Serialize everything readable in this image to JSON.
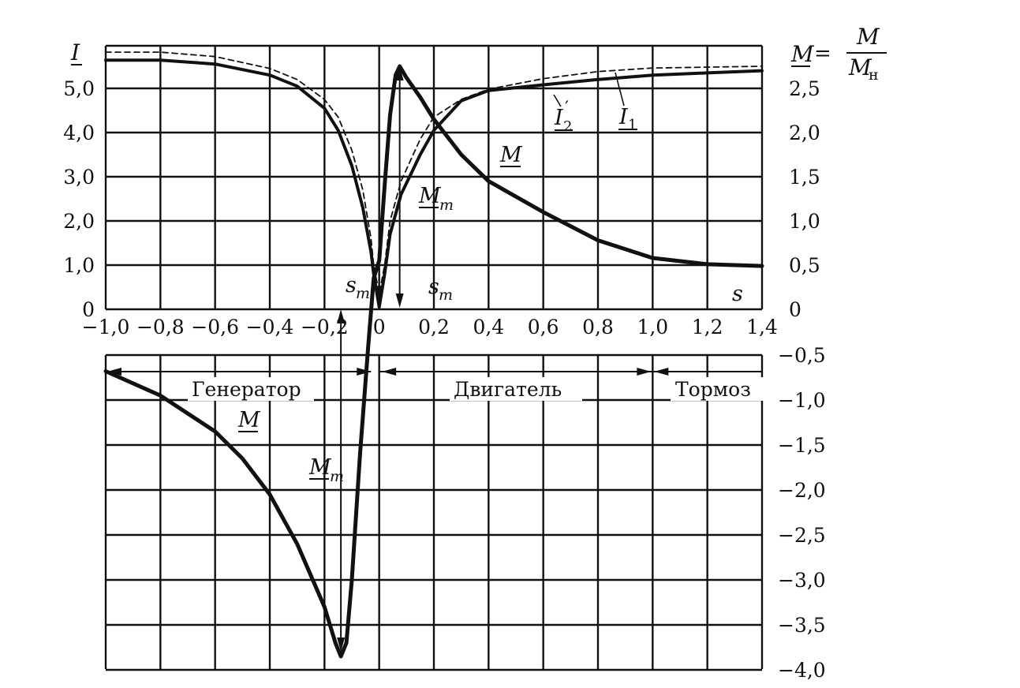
{
  "chart_data": {
    "type": "line",
    "x_axis": {
      "symbol": "s",
      "range": [
        -1.0,
        1.4
      ],
      "ticks": [
        {
          "value": -1.0,
          "label": "−1,0"
        },
        {
          "value": -0.8,
          "label": "−0,8"
        },
        {
          "value": -0.6,
          "label": "−0,6"
        },
        {
          "value": -0.4,
          "label": "−0,4"
        },
        {
          "value": -0.2,
          "label": "−0,2"
        },
        {
          "value": 0.0,
          "label": "0"
        },
        {
          "value": 0.2,
          "label": "0,2"
        },
        {
          "value": 0.4,
          "label": "0,4"
        },
        {
          "value": 0.6,
          "label": "0,6"
        },
        {
          "value": 0.8,
          "label": "0,8"
        },
        {
          "value": 1.0,
          "label": "1,0"
        },
        {
          "value": 1.2,
          "label": "1,2"
        },
        {
          "value": 1.4,
          "label": "1,4"
        }
      ]
    },
    "left_axis": {
      "symbol": "I",
      "range": [
        0,
        6
      ],
      "ticks": [
        {
          "value": 0,
          "label": "0"
        },
        {
          "value": 1,
          "label": "1,0"
        },
        {
          "value": 2,
          "label": "2,0"
        },
        {
          "value": 3,
          "label": "3,0"
        },
        {
          "value": 4,
          "label": "4,0"
        },
        {
          "value": 5,
          "label": "5,0"
        }
      ]
    },
    "right_axis": {
      "label_lhs": "M",
      "label_eq": "=",
      "label_num": "M",
      "label_den": "M",
      "label_den_sub": "н",
      "range": [
        -4.0,
        3.0
      ],
      "ticks_upper": [
        {
          "value": 0,
          "label": "0"
        },
        {
          "value": 0.5,
          "label": "0,5"
        },
        {
          "value": 1.0,
          "label": "1,0"
        },
        {
          "value": 1.5,
          "label": "1,5"
        },
        {
          "value": 2.0,
          "label": "2,0"
        },
        {
          "value": 2.5,
          "label": "2,5"
        }
      ],
      "ticks_lower": [
        {
          "value": -0.5,
          "label": "−0,5"
        },
        {
          "value": -1.0,
          "label": "−1,0"
        },
        {
          "value": -1.5,
          "label": "−1,5"
        },
        {
          "value": -2.0,
          "label": "−2,0"
        },
        {
          "value": -2.5,
          "label": "−2,5"
        },
        {
          "value": -3.0,
          "label": "−3,0"
        },
        {
          "value": -3.5,
          "label": "−3,5"
        },
        {
          "value": -4.0,
          "label": "−4,0"
        }
      ]
    },
    "series": [
      {
        "name": "I1",
        "axis": "left",
        "style": "dashed",
        "points": [
          [
            -1.0,
            5.82
          ],
          [
            -0.8,
            5.82
          ],
          [
            -0.6,
            5.72
          ],
          [
            -0.4,
            5.45
          ],
          [
            -0.3,
            5.2
          ],
          [
            -0.2,
            4.75
          ],
          [
            -0.15,
            4.35
          ],
          [
            -0.1,
            3.6
          ],
          [
            -0.06,
            2.7
          ],
          [
            -0.03,
            1.6
          ],
          [
            -0.02,
            1.0
          ],
          [
            0.0,
            0.35
          ],
          [
            0.02,
            1.0
          ],
          [
            0.04,
            2.0
          ],
          [
            0.08,
            2.9
          ],
          [
            0.15,
            3.85
          ],
          [
            0.2,
            4.35
          ],
          [
            0.3,
            4.75
          ],
          [
            0.4,
            4.98
          ],
          [
            0.6,
            5.22
          ],
          [
            0.8,
            5.38
          ],
          [
            1.0,
            5.46
          ],
          [
            1.2,
            5.48
          ],
          [
            1.4,
            5.5
          ]
        ]
      },
      {
        "name": "I2'",
        "axis": "left",
        "style": "solid",
        "points": [
          [
            -1.0,
            5.64
          ],
          [
            -0.8,
            5.64
          ],
          [
            -0.6,
            5.55
          ],
          [
            -0.4,
            5.3
          ],
          [
            -0.3,
            5.05
          ],
          [
            -0.2,
            4.55
          ],
          [
            -0.15,
            4.05
          ],
          [
            -0.1,
            3.25
          ],
          [
            -0.06,
            2.3
          ],
          [
            -0.03,
            1.3
          ],
          [
            -0.02,
            0.8
          ],
          [
            0.0,
            0.05
          ],
          [
            0.02,
            0.8
          ],
          [
            0.04,
            1.7
          ],
          [
            0.08,
            2.6
          ],
          [
            0.15,
            3.5
          ],
          [
            0.2,
            4.05
          ],
          [
            0.3,
            4.72
          ],
          [
            0.4,
            4.95
          ],
          [
            0.6,
            5.08
          ],
          [
            0.8,
            5.2
          ],
          [
            1.0,
            5.3
          ],
          [
            1.2,
            5.35
          ],
          [
            1.4,
            5.4
          ]
        ]
      },
      {
        "name": "M",
        "axis": "right",
        "style": "solid-heavy",
        "points": [
          [
            -1.0,
            -0.68
          ],
          [
            -0.8,
            -0.95
          ],
          [
            -0.6,
            -1.35
          ],
          [
            -0.5,
            -1.65
          ],
          [
            -0.4,
            -2.05
          ],
          [
            -0.3,
            -2.6
          ],
          [
            -0.2,
            -3.3
          ],
          [
            -0.16,
            -3.7
          ],
          [
            -0.14,
            -3.85
          ],
          [
            -0.12,
            -3.7
          ],
          [
            -0.1,
            -3.0
          ],
          [
            -0.07,
            -1.6
          ],
          [
            -0.04,
            -0.4
          ],
          [
            -0.02,
            0.35
          ],
          [
            0.0,
            0.55
          ],
          [
            0.02,
            1.4
          ],
          [
            0.04,
            2.2
          ],
          [
            0.06,
            2.65
          ],
          [
            0.075,
            2.75
          ],
          [
            0.1,
            2.62
          ],
          [
            0.15,
            2.4
          ],
          [
            0.2,
            2.15
          ],
          [
            0.3,
            1.75
          ],
          [
            0.4,
            1.45
          ],
          [
            0.6,
            1.1
          ],
          [
            0.8,
            0.78
          ],
          [
            1.0,
            0.58
          ],
          [
            1.2,
            0.51
          ],
          [
            1.4,
            0.49
          ]
        ]
      }
    ],
    "annotations": {
      "curve_labels": {
        "i1": "I",
        "i1_sub": "1",
        "i2": "I",
        "i2_sub": "2",
        "i2_prime": "′",
        "m_upper": "M",
        "m_lower": "M",
        "mm_upper": "M",
        "mm_upper_sub": "m",
        "mm_lower": "M",
        "mm_lower_sub": "m"
      },
      "slip_labels": {
        "sm_left": "s",
        "sm_left_sub": "m",
        "sm_right": "s",
        "sm_right_sub": "m"
      },
      "regions": [
        {
          "label": "Генератор",
          "from": -1.0,
          "to": -0.03
        },
        {
          "label": "Двигатель",
          "from": 0.0,
          "to": 1.0
        },
        {
          "label": "Тормоз",
          "from": 1.0,
          "to": 1.4
        }
      ]
    },
    "grid": true
  }
}
